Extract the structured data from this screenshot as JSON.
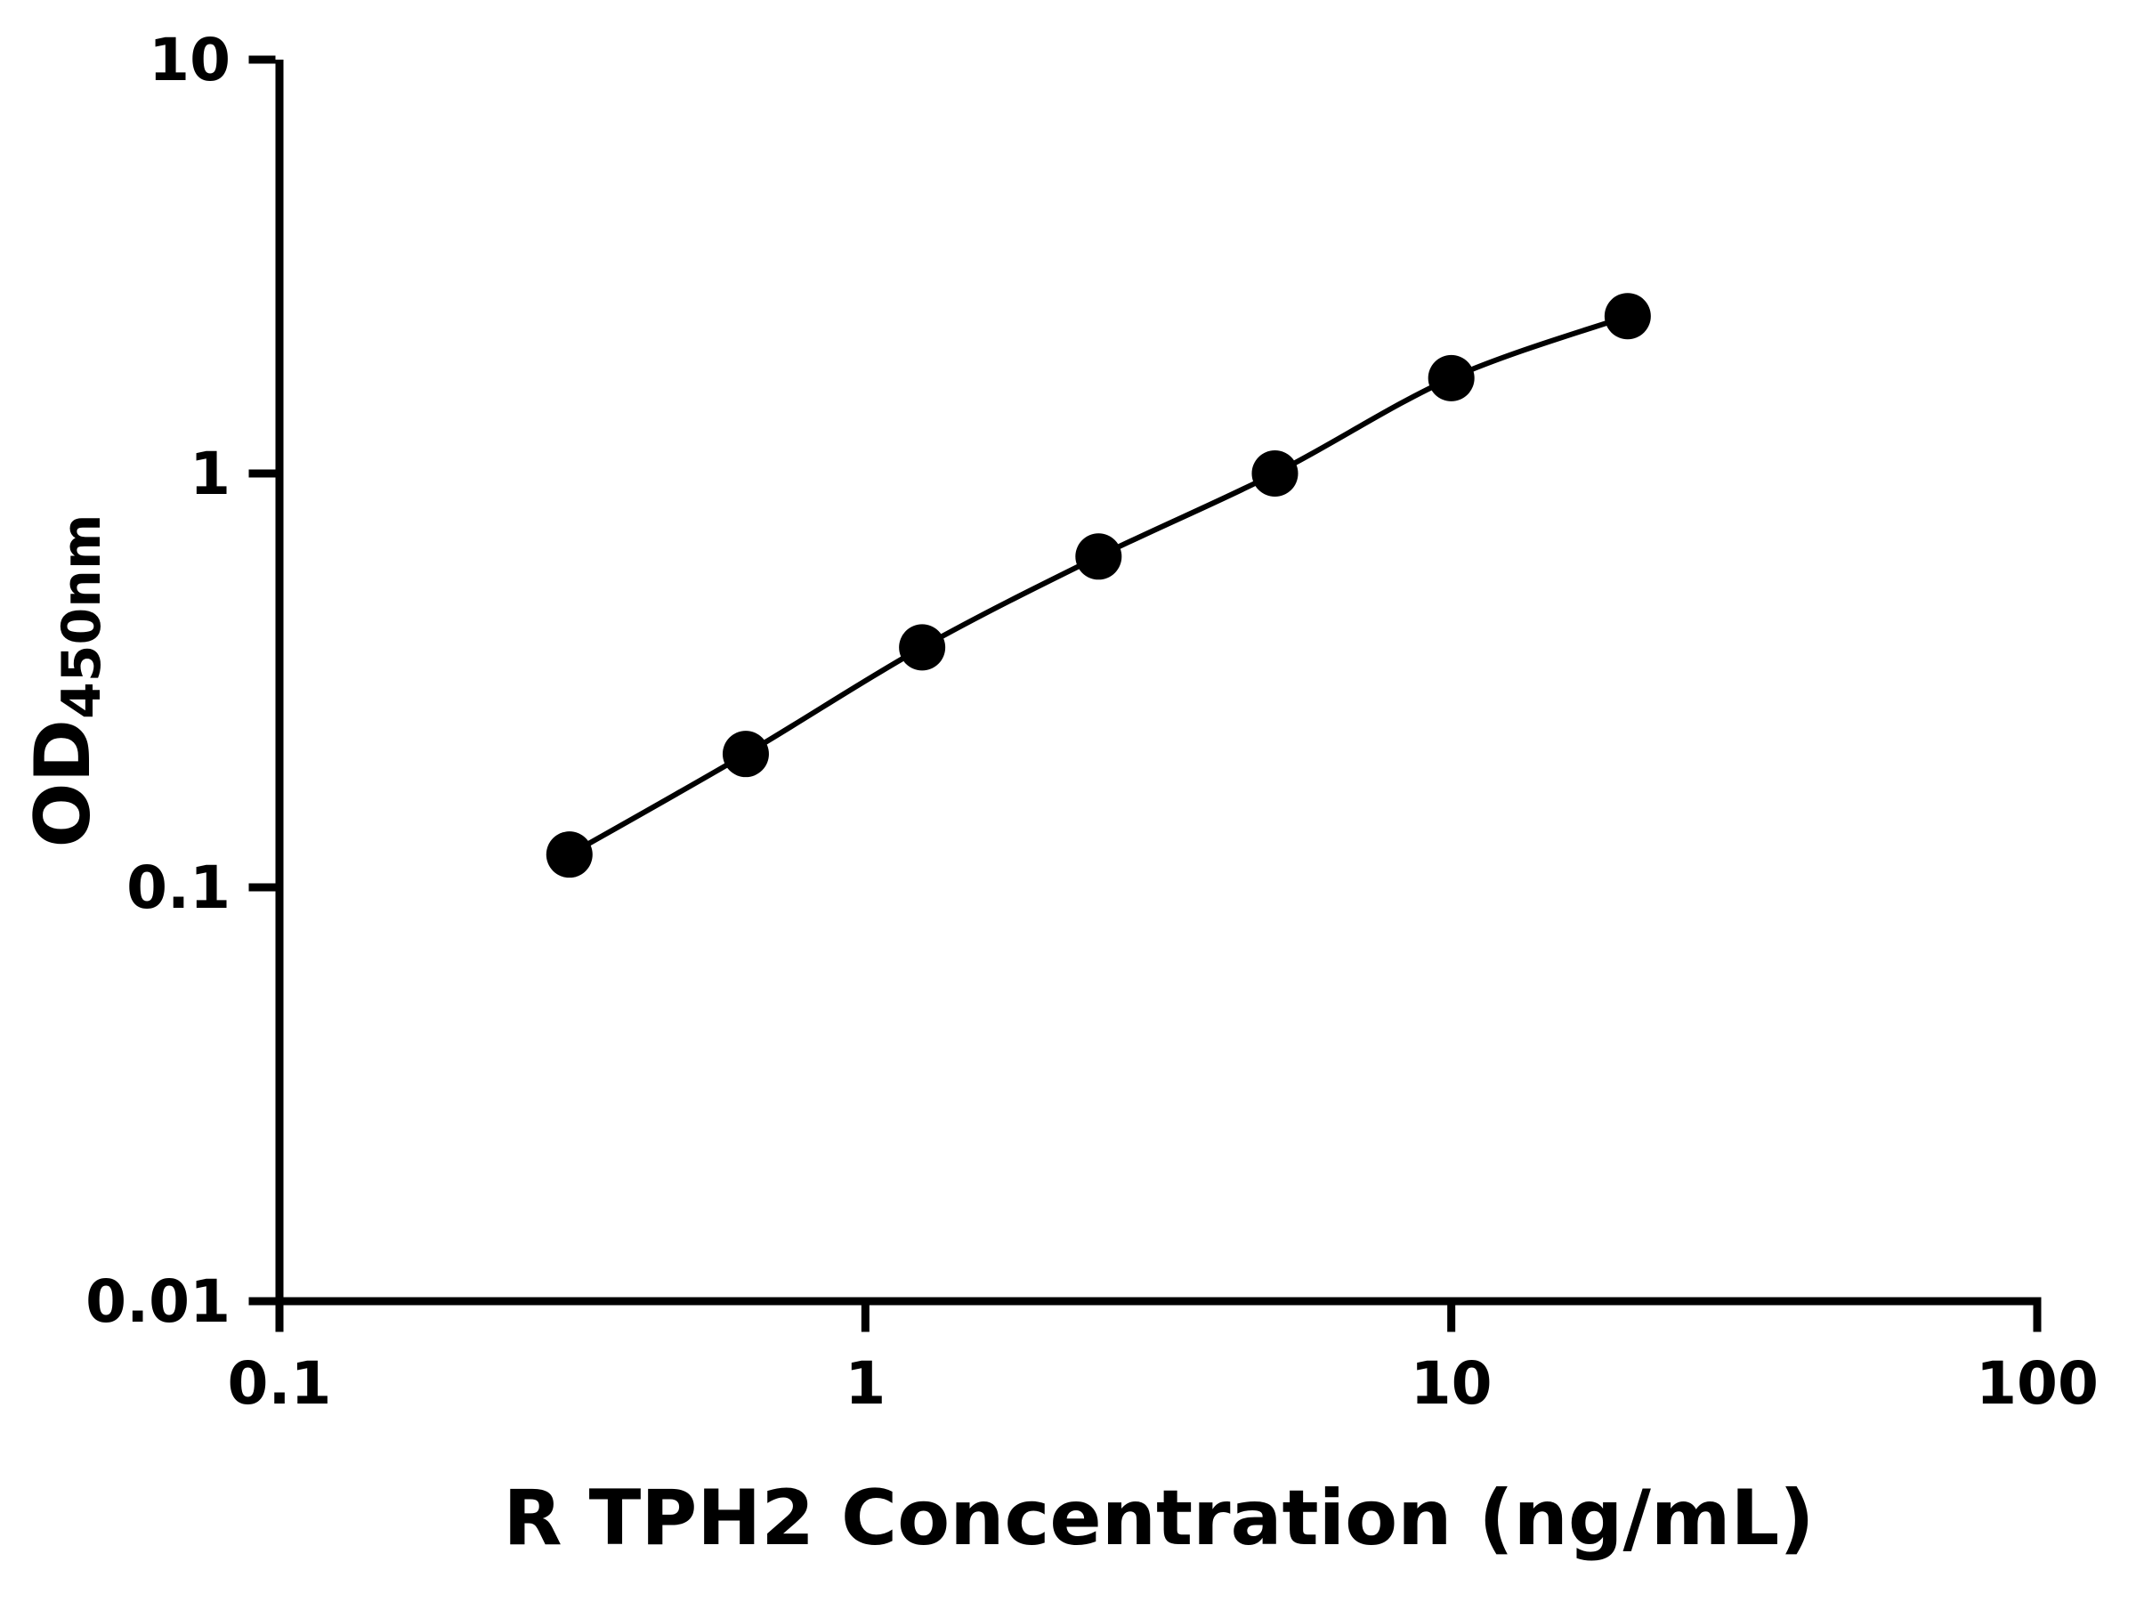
{
  "chart_data": {
    "type": "scatter",
    "title": "",
    "xlabel": "R TPH2 Concentration (ng/mL)",
    "ylabel_main": "OD",
    "ylabel_sub": "450nm",
    "x_scale": "log",
    "y_scale": "log",
    "xlim": [
      0.1,
      100
    ],
    "ylim": [
      0.01,
      10
    ],
    "grid": false,
    "legend": null,
    "x": [
      0.3125,
      0.625,
      1.25,
      2.5,
      5,
      10,
      20
    ],
    "y": [
      0.12,
      0.21,
      0.38,
      0.63,
      1.0,
      1.7,
      2.4
    ],
    "x_ticks": [
      {
        "value": 0.1,
        "label": "0.1"
      },
      {
        "value": 1,
        "label": "1"
      },
      {
        "value": 10,
        "label": "10"
      },
      {
        "value": 100,
        "label": "100"
      }
    ],
    "y_ticks": [
      {
        "value": 0.01,
        "label": "0.01"
      },
      {
        "value": 0.1,
        "label": "0.1"
      },
      {
        "value": 1,
        "label": "1"
      },
      {
        "value": 10,
        "label": "10"
      }
    ],
    "axis_color": "#000000",
    "line_color": "#000000",
    "marker_color": "#000000",
    "background_color": "#ffffff"
  }
}
